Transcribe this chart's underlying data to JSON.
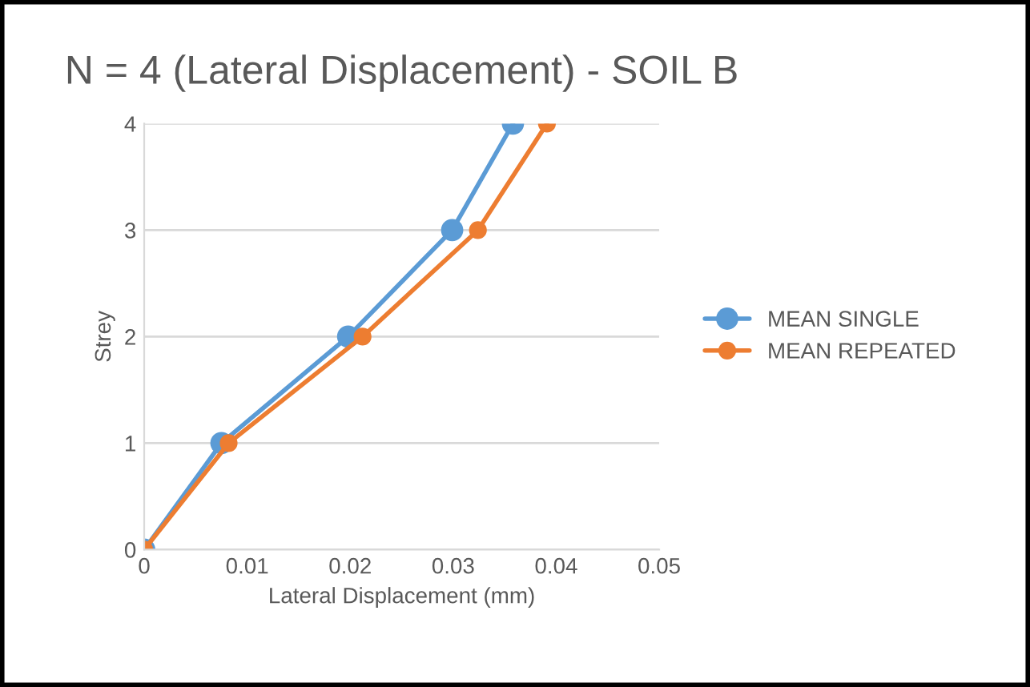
{
  "chart_data": {
    "type": "line",
    "title": "N = 4 (Lateral Displacement) - SOIL B",
    "xlabel": "Lateral Displacement (mm)",
    "ylabel": "Strey",
    "xlim": [
      0,
      0.05
    ],
    "xticks": [
      0,
      0.01,
      0.02,
      0.03,
      0.04,
      0.05
    ],
    "ylim": [
      0,
      4
    ],
    "yticks": [
      0,
      1,
      2,
      3,
      4
    ],
    "grid": "y",
    "legend": "right",
    "marker": "circle",
    "line_style": "solid",
    "series": [
      {
        "name": "MEAN SINGLE",
        "color": "#5b9bd5",
        "x": [
          0,
          0.0075,
          0.0198,
          0.0299,
          0.0358
        ],
        "values": [
          0,
          1,
          2,
          3,
          4
        ]
      },
      {
        "name": "MEAN REPEATED",
        "color": "#ed7d31",
        "x": [
          0,
          0.0082,
          0.0212,
          0.0324,
          0.0391
        ],
        "values": [
          0,
          1,
          2,
          3,
          4
        ]
      }
    ]
  }
}
